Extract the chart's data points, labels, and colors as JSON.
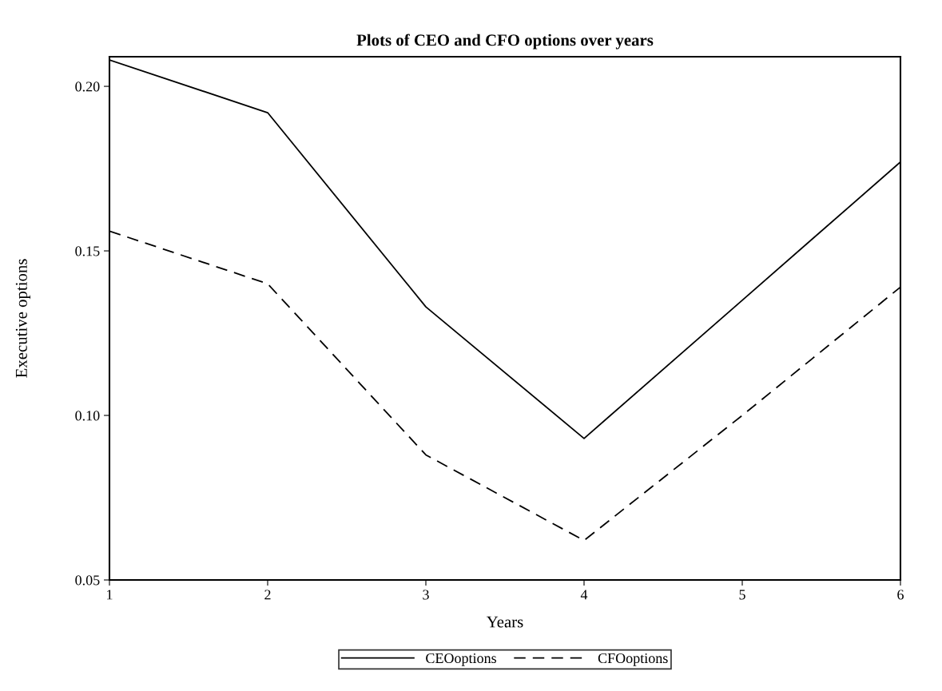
{
  "chart_data": {
    "type": "line",
    "title": "Plots of CEO and CFO options over years",
    "xlabel": "Years",
    "ylabel": "Executive options",
    "x": [
      1,
      2,
      3,
      4,
      5,
      6
    ],
    "series": [
      {
        "name": "CEOoptions",
        "color": "#000000",
        "line_style": "solid",
        "values": [
          0.208,
          0.192,
          0.133,
          0.093,
          0.135,
          0.177
        ]
      },
      {
        "name": "CFOoptions",
        "color": "#000000",
        "line_style": "dashed",
        "values": [
          0.156,
          0.14,
          0.088,
          0.062,
          0.1,
          0.139
        ]
      }
    ],
    "xlim": [
      1,
      6
    ],
    "xticks": [
      1,
      2,
      3,
      4,
      5,
      6
    ],
    "ylim": [
      0.05,
      0.209
    ],
    "yticks": [
      {
        "value": 0.05,
        "label": "0.05"
      },
      {
        "value": 0.1,
        "label": "0.10"
      },
      {
        "value": 0.15,
        "label": "0.15"
      },
      {
        "value": 0.2,
        "label": "0.20"
      }
    ],
    "grid": false,
    "legend": "bottom",
    "marker": "none"
  }
}
